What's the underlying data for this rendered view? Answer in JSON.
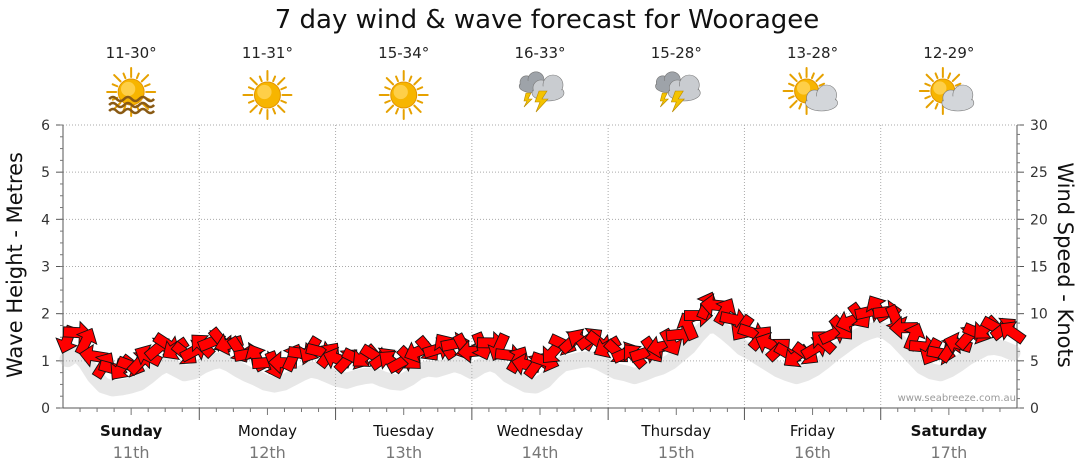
{
  "chart_data": {
    "type": "line",
    "title": "7 day wind & wave forecast for Wooragee",
    "ylabel_left": "Wave Height - Metres",
    "ylabel_right": "Wind Speed - Knots",
    "ylim_left": [
      0,
      6
    ],
    "ylim_right": [
      0,
      30
    ],
    "yticks_left": [
      "0",
      "1",
      "2",
      "3",
      "4",
      "5",
      "6"
    ],
    "yticks_right": [
      "0",
      "5",
      "10",
      "15",
      "20",
      "25",
      "30"
    ],
    "days": [
      {
        "name": "Sunday",
        "date": "11th",
        "temp": "11-30°",
        "icon": "sun-haze-icon",
        "bold": true
      },
      {
        "name": "Monday",
        "date": "12th",
        "temp": "11-31°",
        "icon": "sun-icon",
        "bold": false
      },
      {
        "name": "Tuesday",
        "date": "13th",
        "temp": "15-34°",
        "icon": "sun-icon",
        "bold": false
      },
      {
        "name": "Wednesday",
        "date": "14th",
        "temp": "16-33°",
        "icon": "thunderstorm-icon",
        "bold": false
      },
      {
        "name": "Thursday",
        "date": "15th",
        "temp": "15-28°",
        "icon": "thunderstorm-icon",
        "bold": false
      },
      {
        "name": "Friday",
        "date": "16th",
        "temp": "13-28°",
        "icon": "partly-cloudy-icon",
        "bold": false
      },
      {
        "name": "Saturday",
        "date": "17th",
        "temp": "12-29°",
        "icon": "partly-cloudy-icon",
        "bold": true
      }
    ],
    "wind_speed_knots": [
      7.3,
      8.0,
      7.0,
      5.5,
      4.5,
      4.2,
      4.3,
      4.5,
      4.8,
      5.5,
      6.3,
      6.8,
      6.3,
      5.8,
      6.0,
      6.6,
      7.0,
      7.2,
      6.8,
      6.2,
      5.7,
      5.3,
      4.8,
      4.6,
      4.8,
      5.3,
      5.8,
      6.2,
      6.0,
      5.6,
      5.2,
      5.0,
      5.3,
      5.5,
      5.6,
      5.2,
      4.9,
      4.8,
      5.3,
      6.0,
      6.3,
      6.2,
      6.5,
      6.8,
      6.5,
      6.0,
      6.6,
      6.9,
      6.5,
      5.6,
      5.1,
      4.6,
      4.5,
      5.0,
      6.0,
      6.8,
      7.0,
      7.2,
      7.3,
      7.0,
      6.5,
      6.0,
      5.8,
      5.5,
      5.8,
      6.2,
      6.5,
      7.0,
      7.8,
      8.6,
      9.8,
      10.8,
      10.9,
      10.2,
      9.4,
      8.5,
      8.0,
      7.4,
      6.8,
      6.2,
      5.8,
      5.5,
      5.8,
      6.3,
      7.0,
      7.8,
      8.5,
      9.2,
      9.8,
      10.2,
      10.5,
      10.2,
      9.5,
      8.5,
      7.5,
      6.5,
      6.0,
      5.8,
      6.2,
      6.8,
      7.5,
      8.0,
      8.5,
      8.6,
      8.4,
      8.0
    ]
  },
  "credit": "www.seabreeze.com.au"
}
